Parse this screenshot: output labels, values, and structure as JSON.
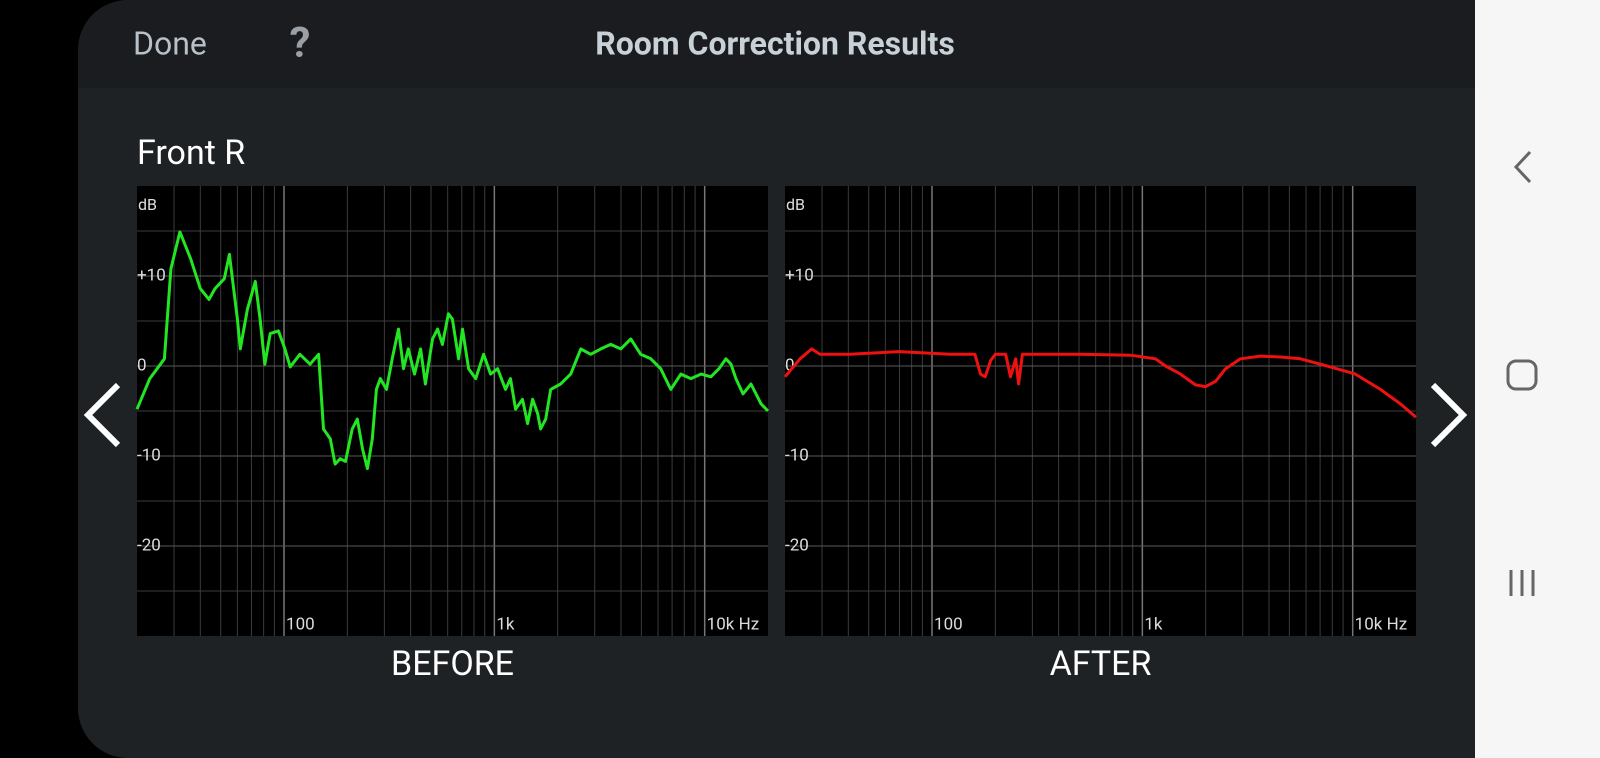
{
  "header": {
    "done": "Done",
    "help": "?",
    "title": "Room Correction Results"
  },
  "section": "Front R",
  "chart_data": [
    {
      "type": "line",
      "title": "BEFORE",
      "ylabel": "dB",
      "xscale": "log",
      "grid": true,
      "color": "#22e622",
      "xlim": [
        20,
        20000
      ],
      "ylim": [
        -30,
        20
      ],
      "xticks": [
        100,
        {
          "value": 1000,
          "label": "1k"
        },
        {
          "value": 10000,
          "label": "10k Hz"
        }
      ],
      "yticks": [
        {
          "value": 10,
          "label": "+10"
        },
        0,
        -10,
        -20
      ],
      "x": [
        20,
        23,
        27,
        29,
        32,
        36,
        40,
        44,
        47,
        52,
        55,
        60,
        62,
        67,
        73,
        77,
        81,
        86,
        94,
        101,
        107,
        119,
        133,
        146,
        154,
        166,
        175,
        185,
        196,
        211,
        223,
        236,
        249,
        263,
        275,
        287,
        307,
        327,
        350,
        370,
        390,
        417,
        446,
        470,
        508,
        537,
        566,
        605,
        632,
        676,
        706,
        754,
        815,
        889,
        960,
        1036,
        1130,
        1194,
        1262,
        1361,
        1439,
        1520,
        1607,
        1660,
        1754,
        1853,
        2066,
        2306,
        2576,
        2872,
        3206,
        3576,
        3990,
        4456,
        4966,
        5546,
        6180,
        6902,
        7706,
        8600,
        9600,
        10700,
        11700,
        12620,
        13340,
        14080,
        15210,
        16600,
        18530,
        20000
      ],
      "values": [
        -4.8,
        -1.4,
        0.8,
        10.8,
        14.9,
        11.9,
        8.6,
        7.4,
        8.6,
        9.7,
        12.4,
        5.2,
        1.9,
        6.3,
        9.4,
        5.2,
        0.2,
        3.6,
        3.9,
        1.9,
        -0.1,
        1.3,
        0.2,
        1.3,
        -7,
        -8.1,
        -10.9,
        -10.3,
        -10.6,
        -7,
        -5.9,
        -9.2,
        -11.4,
        -8.1,
        -2.6,
        -1.4,
        -2.6,
        0.8,
        4.1,
        -0.3,
        1.9,
        -0.9,
        1.9,
        -2,
        3,
        4.1,
        2.4,
        5.8,
        5.2,
        0.8,
        4.1,
        -0.3,
        -1.4,
        1.3,
        -0.9,
        -0.3,
        -2.6,
        -1.4,
        -4.8,
        -3.7,
        -6.4,
        -3.7,
        -5.3,
        -7,
        -5.9,
        -2.6,
        -2,
        -0.9,
        1.9,
        1.3,
        1.9,
        2.4,
        1.9,
        3,
        1.3,
        0.8,
        -0.3,
        -2.6,
        -0.9,
        -1.4,
        -0.9,
        -1.2,
        -0.3,
        0.8,
        0.2,
        -1.4,
        -3.1,
        -2,
        -4.2,
        -5
      ]
    },
    {
      "type": "line",
      "title": "AFTER",
      "ylabel": "dB",
      "xscale": "log",
      "grid": true,
      "color": "#ee1111",
      "xlim": [
        20,
        20000
      ],
      "ylim": [
        -30,
        20
      ],
      "xticks": [
        100,
        {
          "value": 1000,
          "label": "1k"
        },
        {
          "value": 10000,
          "label": "10k Hz"
        }
      ],
      "yticks": [
        {
          "value": 10,
          "label": "+10"
        },
        0,
        -10,
        -20
      ],
      "x": [
        20,
        23.6,
        26.8,
        29.3,
        40.6,
        70,
        122,
        160,
        170,
        179,
        190,
        200,
        224,
        236,
        250,
        258,
        269,
        294,
        508,
        879,
        1155,
        1288,
        1519,
        1790,
        1996,
        2230,
        2488,
        2930,
        3640,
        4530,
        5650,
        7840,
        10300,
        13550,
        16850,
        20000
      ],
      "values": [
        -1.2,
        0.8,
        1.9,
        1.3,
        1.3,
        1.6,
        1.3,
        1.3,
        -0.9,
        -1.2,
        0.6,
        1.3,
        1.3,
        -1.2,
        0.8,
        -2,
        1.3,
        1.3,
        1.3,
        1.2,
        0.8,
        0,
        -0.9,
        -2.1,
        -2.3,
        -1.7,
        -0.3,
        0.8,
        1.1,
        1,
        0.8,
        -0.1,
        -0.9,
        -2.6,
        -4.2,
        -5.7
      ]
    }
  ]
}
